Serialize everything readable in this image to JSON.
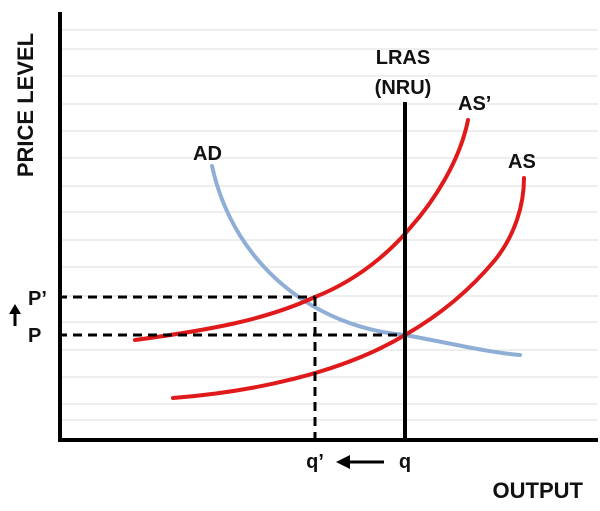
{
  "axes": {
    "y_label": "PRICE LEVEL",
    "x_label": "OUTPUT"
  },
  "curves": {
    "ad": {
      "label": "AD",
      "color": "#8faed6"
    },
    "as": {
      "label": "AS",
      "color": "#e0191b"
    },
    "as_prime": {
      "label": "AS’",
      "color": "#e0191b"
    },
    "lras": {
      "label_line1": "LRAS",
      "label_line2": "(NRU)",
      "color": "#000000"
    }
  },
  "levels": {
    "p_prime": "P’",
    "p": "P",
    "q_prime": "q’",
    "q": "q"
  },
  "arrows": {
    "price_up_icon": "arrow-up-icon",
    "output_left_icon": "arrow-left-icon"
  }
}
